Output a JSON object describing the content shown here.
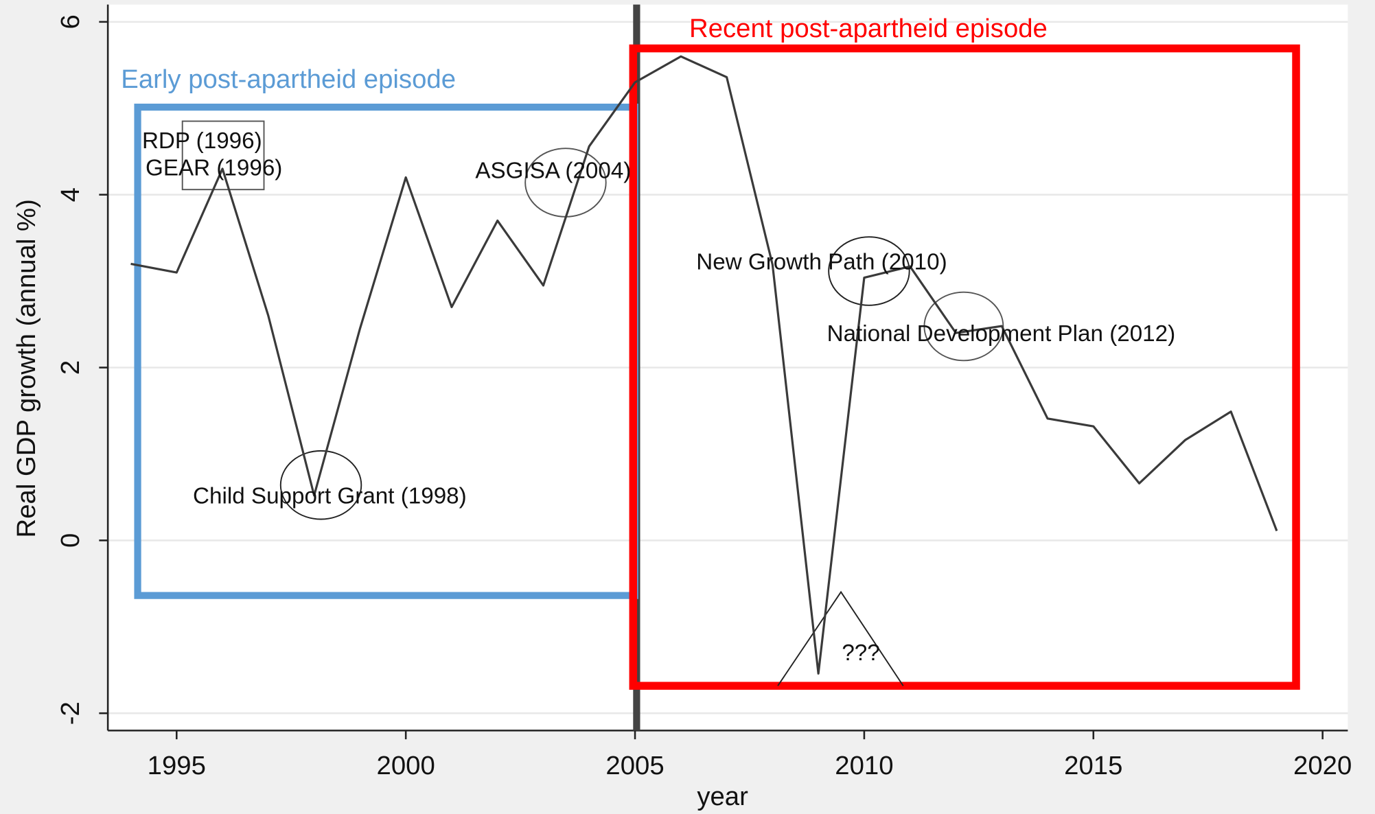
{
  "chart_data": {
    "type": "line",
    "x_label": "year",
    "y_label": "Real GDP growth (annual %)",
    "x": [
      1994,
      1995,
      1996,
      1997,
      1998,
      1999,
      2000,
      2001,
      2002,
      2003,
      2004,
      2005,
      2006,
      2007,
      2008,
      2009,
      2010,
      2011,
      2012,
      2013,
      2014,
      2015,
      2016,
      2017,
      2018,
      2019
    ],
    "series": [
      {
        "name": "Real GDP growth",
        "color": "#3a3a3a",
        "values": [
          3.2,
          3.1,
          4.3,
          2.6,
          0.52,
          2.45,
          4.2,
          2.7,
          3.7,
          2.95,
          4.56,
          5.3,
          5.6,
          5.36,
          3.19,
          -1.54,
          3.04,
          3.17,
          2.4,
          2.48,
          1.41,
          1.32,
          0.66,
          1.16,
          1.49,
          0.11
        ]
      }
    ],
    "xlim": [
      1993.5,
      2020.55
    ],
    "ylim": [
      -2.2,
      6.2
    ],
    "xticks": [
      1995,
      2000,
      2005,
      2010,
      2015,
      2020
    ],
    "yticks": [
      -2,
      0,
      2,
      4,
      6
    ],
    "grid": true,
    "annotations": [
      "Early post-apartheid episode",
      "Recent post-apartheid episode",
      "RDP (1996)",
      "GEAR (1996)",
      "ASGISA (2004)",
      "Child Support Grant (1998)",
      "New Growth Path (2010)",
      "National Development Plan (2012)",
      "???"
    ]
  }
}
